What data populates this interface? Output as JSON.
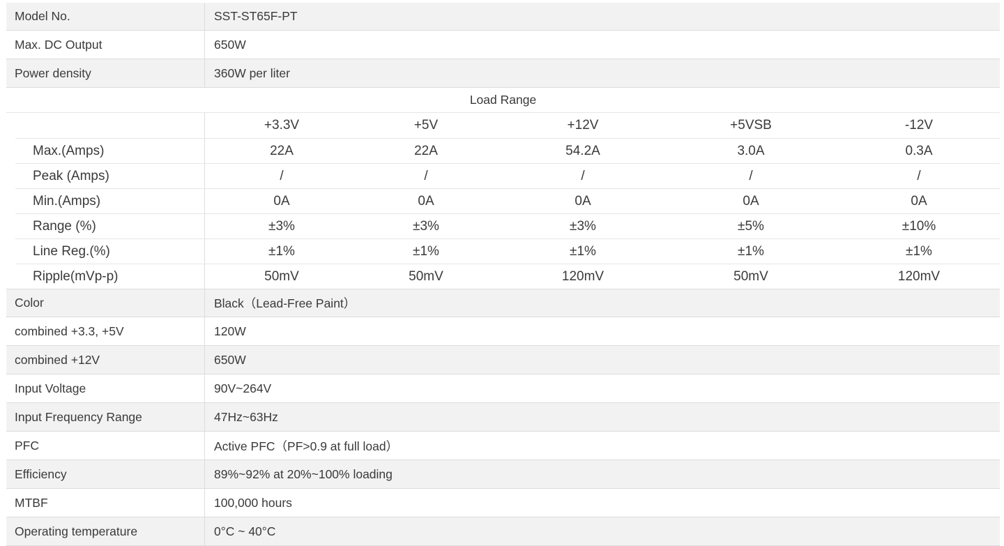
{
  "rows_top": [
    {
      "label": "Model No.",
      "value": "SST-ST65F-PT"
    },
    {
      "label": "Max. DC Output",
      "value": "650W"
    },
    {
      "label": "Power density",
      "value": "360W per liter"
    }
  ],
  "load_range": {
    "title": "Load Range",
    "columns": [
      "+3.3V",
      "+5V",
      "+12V",
      "+5VSB",
      "-12V"
    ],
    "rows": [
      {
        "label": "Max.(Amps)",
        "values": [
          "22A",
          "22A",
          "54.2A",
          "3.0A",
          "0.3A"
        ]
      },
      {
        "label": "Peak (Amps)",
        "values": [
          "/",
          "/",
          "/",
          "/",
          "/"
        ]
      },
      {
        "label": "Min.(Amps)",
        "values": [
          "0A",
          "0A",
          "0A",
          "0A",
          "0A"
        ]
      },
      {
        "label": "Range (%)",
        "values": [
          "±3%",
          "±3%",
          "±3%",
          "±5%",
          "±10%"
        ]
      },
      {
        "label": "Line Reg.(%)",
        "values": [
          "±1%",
          "±1%",
          "±1%",
          "±1%",
          "±1%"
        ]
      },
      {
        "label": "Ripple(mVp-p)",
        "values": [
          "50mV",
          "50mV",
          "120mV",
          "50mV",
          "120mV"
        ]
      }
    ]
  },
  "rows_bottom": [
    {
      "label": "Color",
      "value": "Black（Lead-Free Paint）"
    },
    {
      "label": "combined +3.3, +5V",
      "value": "120W"
    },
    {
      "label": "combined +12V",
      "value": "650W"
    },
    {
      "label": "Input Voltage",
      "value": "90V~264V"
    },
    {
      "label": "Input Frequency Range",
      "value": "47Hz~63Hz"
    },
    {
      "label": "PFC",
      "value": "Active PFC（PF>0.9 at full load）"
    },
    {
      "label": "Efficiency",
      "value": "89%~92% at 20%~100% loading"
    },
    {
      "label": "MTBF",
      "value": "100,000 hours"
    },
    {
      "label": "Operating temperature",
      "value": "0°C ~ 40°C"
    }
  ],
  "colors": {
    "row_alt": "#f2f2f2",
    "border": "#dcdcdc",
    "text": "#3a3a3a"
  }
}
